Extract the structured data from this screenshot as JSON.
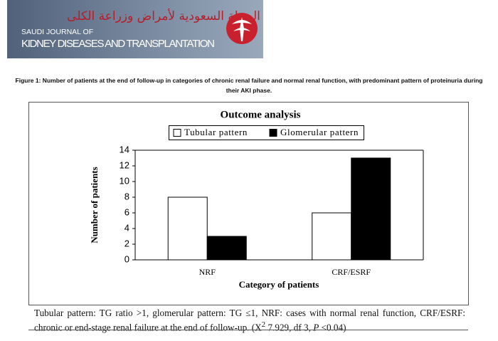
{
  "header": {
    "journal_line1": "SAUDI JOURNAL OF",
    "journal_line2": "KIDNEY DISEASES AND TRANSPLANTATION",
    "arabic": "المجلة السعودية لأمراض وزراعة الكلى"
  },
  "caption": "Figure 1: Number of patients at the end of follow-up in categories of chronic renal failure and normal renal function, with predominant pattern of proteinuria during their AKI phase.",
  "chart_data": {
    "type": "bar",
    "title": "Outcome analysis",
    "x_label": "Category of patients",
    "y_label": "Number of patients",
    "categories": [
      "NRF",
      "CRF/ESRF"
    ],
    "series": [
      {
        "name": "Tubular pattern",
        "color": "#ffffff",
        "values": [
          8,
          6
        ]
      },
      {
        "name": "Glomerular pattern",
        "color": "#000000",
        "values": [
          3,
          13
        ]
      }
    ],
    "ylim": [
      0,
      14
    ],
    "yticks": [
      0,
      2,
      4,
      6,
      8,
      10,
      12,
      14
    ],
    "grid": false,
    "legend": "top"
  },
  "note": [
    "Tubular pattern: TG ratio >1, glomerular pattern: TG ≤1, NRF: cases with normal renal function, CRF/ESRF: chronic or end-stage renal failure at the end of follow-up. (X",
    "2",
    " 7.929, df 3, ",
    "P",
    " <0.04)"
  ]
}
